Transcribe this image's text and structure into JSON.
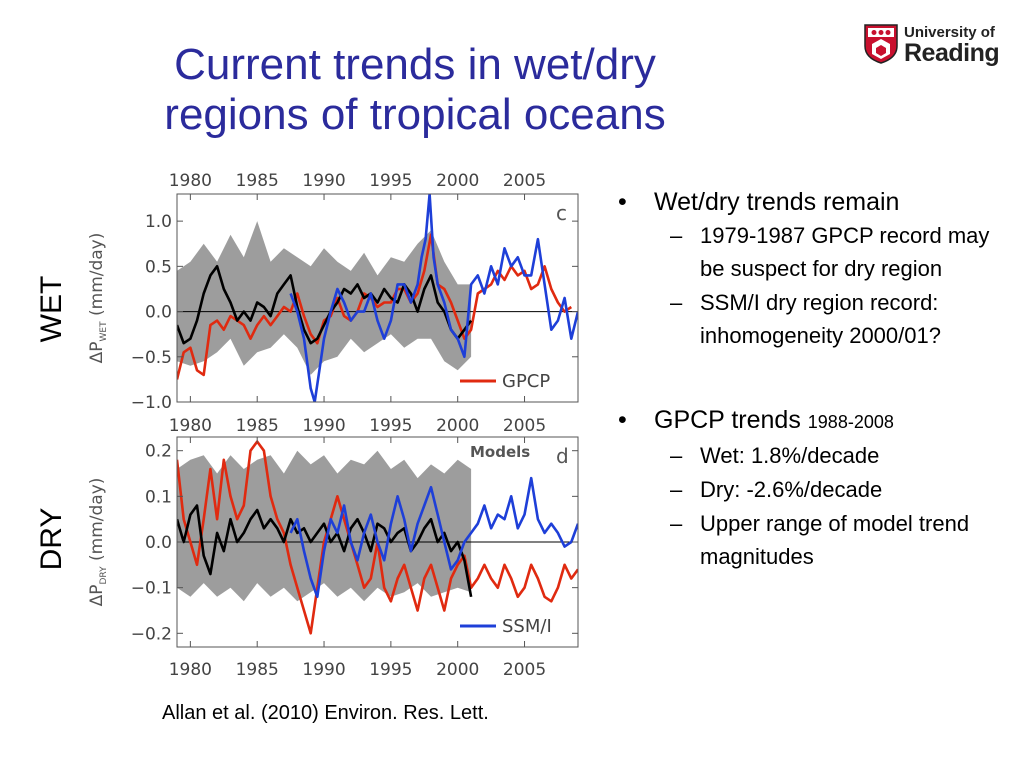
{
  "slide": {
    "title_lines": [
      "Current trends in wet/dry",
      "regions of tropical oceans"
    ],
    "logo": {
      "line1": "University of",
      "line2": "Reading",
      "color": "#c8102e"
    },
    "side_labels": {
      "wet": "WET",
      "dry": "DRY"
    },
    "bullets": [
      {
        "text": "Wet/dry trends remain",
        "sub": [
          "1979-1987 GPCP record may be suspect for dry region",
          "SSM/I dry region record: inhomogeneity 2000/01?"
        ]
      },
      {
        "text": "GPCP trends",
        "text_small": "1988-2008",
        "sub": [
          "Wet: 1.8%/decade",
          "Dry: -2.6%/decade",
          "Upper range of model trend magnitudes"
        ]
      }
    ],
    "bullet_glyph": "•",
    "dash_glyph": "–",
    "citation": "Allan et al. (2010) Environ. Res. Lett."
  },
  "chart_data": [
    {
      "type": "line",
      "panel_letter": "c",
      "ylabel": "ΔP",
      "ylabel_sub": "WET",
      "ylabel_unit": " (mm/day)",
      "xlim": [
        1979,
        2009
      ],
      "ylim": [
        -1.0,
        1.3
      ],
      "yticks": [
        -1.0,
        -0.5,
        0.0,
        0.5,
        1.0
      ],
      "ytick_labels": [
        "−1.0",
        "−0.5",
        "0.0",
        "0.5",
        "1.0"
      ],
      "xticks": [
        1980,
        1985,
        1990,
        1995,
        2000,
        2005
      ],
      "xtick_labels": [
        "1980",
        "1985",
        "1990",
        "1995",
        "2000",
        "2005"
      ],
      "zero_line": true,
      "legend": {
        "label": "GPCP",
        "color": "#e02a10",
        "placement": "bottom-right"
      },
      "series": [
        {
          "role": "band",
          "color": "#8c8c8c",
          "x": [
            1979.0,
            1980.0,
            1981.0,
            1982.0,
            1983.0,
            1984.0,
            1985.0,
            1986.0,
            1987.0,
            1988.0,
            1989.0,
            1990.0,
            1991.0,
            1992.0,
            1993.0,
            1994.0,
            1995.0,
            1996.0,
            1997.0,
            1998.0,
            1999.0,
            2000.0,
            2001.0
          ],
          "lower": [
            -0.55,
            -0.6,
            -0.55,
            -0.45,
            -0.3,
            -0.6,
            -0.45,
            -0.4,
            -0.25,
            -0.4,
            -0.7,
            -0.55,
            -0.5,
            -0.3,
            -0.45,
            -0.35,
            -0.25,
            -0.4,
            -0.3,
            -0.3,
            -0.55,
            -0.65,
            -0.5
          ],
          "upper": [
            0.45,
            0.55,
            0.75,
            0.55,
            0.85,
            0.6,
            1.0,
            0.55,
            0.7,
            0.6,
            0.5,
            0.7,
            0.55,
            0.45,
            0.65,
            0.4,
            0.6,
            0.55,
            0.75,
            0.9,
            0.55,
            0.3,
            0.3
          ]
        },
        {
          "name": "GPCP",
          "color": "#e02a10",
          "x": [
            1979.0,
            1979.5,
            1980.0,
            1980.5,
            1981.0,
            1981.5,
            1982.0,
            1982.5,
            1983.0,
            1983.5,
            1984.0,
            1984.5,
            1985.0,
            1985.5,
            1986.0,
            1986.5,
            1987.0,
            1987.5,
            1988.0,
            1988.5,
            1989.0,
            1989.5,
            1990.0,
            1990.5,
            1991.0,
            1991.5,
            1992.0,
            1992.5,
            1993.0,
            1993.5,
            1994.0,
            1994.5,
            1995.0,
            1995.5,
            1996.0,
            1996.5,
            1997.0,
            1997.5,
            1998.0,
            1998.5,
            1999.0,
            1999.5,
            2000.0,
            2000.5,
            2001.0,
            2001.5,
            2002.0,
            2002.5,
            2003.0,
            2003.5,
            2004.0,
            2004.5,
            2005.0,
            2005.5,
            2006.0,
            2006.5,
            2007.0,
            2007.5,
            2008.0,
            2008.5
          ],
          "y": [
            -0.75,
            -0.45,
            -0.4,
            -0.65,
            -0.7,
            -0.15,
            -0.1,
            -0.2,
            -0.05,
            -0.1,
            -0.15,
            -0.3,
            -0.15,
            -0.05,
            -0.15,
            -0.05,
            0.05,
            0.0,
            0.2,
            -0.05,
            -0.25,
            -0.35,
            -0.1,
            -0.05,
            0.15,
            -0.05,
            -0.1,
            0.0,
            0.2,
            0.15,
            0.05,
            0.1,
            0.1,
            0.25,
            0.25,
            0.1,
            0.2,
            0.45,
            0.85,
            0.3,
            0.25,
            0.1,
            -0.1,
            -0.3,
            -0.2,
            0.2,
            0.25,
            0.3,
            0.45,
            0.35,
            0.5,
            0.4,
            0.45,
            0.25,
            0.3,
            0.5,
            0.25,
            0.1,
            0.0,
            0.05
          ]
        },
        {
          "name": "Models",
          "color": "#000000",
          "x": [
            1979.0,
            1979.5,
            1980.0,
            1980.5,
            1981.0,
            1981.5,
            1982.0,
            1982.5,
            1983.0,
            1983.5,
            1984.0,
            1984.5,
            1985.0,
            1985.5,
            1986.0,
            1986.5,
            1987.0,
            1987.5,
            1988.0,
            1988.5,
            1989.0,
            1989.5,
            1990.0,
            1990.5,
            1991.0,
            1991.5,
            1992.0,
            1992.5,
            1993.0,
            1993.5,
            1994.0,
            1994.5,
            1995.0,
            1995.5,
            1996.0,
            1996.5,
            1997.0,
            1997.5,
            1998.0,
            1998.5,
            1999.0,
            1999.5,
            2000.0,
            2000.5,
            2001.0
          ],
          "y": [
            -0.15,
            -0.35,
            -0.3,
            -0.1,
            0.2,
            0.4,
            0.5,
            0.25,
            0.1,
            -0.1,
            0.0,
            -0.1,
            0.1,
            0.05,
            -0.05,
            0.2,
            0.3,
            0.4,
            0.05,
            -0.2,
            -0.35,
            -0.3,
            -0.15,
            0.0,
            0.1,
            0.25,
            0.2,
            0.3,
            0.15,
            0.2,
            0.1,
            0.25,
            0.15,
            0.1,
            0.3,
            0.2,
            0.0,
            0.25,
            0.4,
            0.1,
            0.0,
            -0.2,
            -0.3,
            -0.2,
            -0.1
          ]
        },
        {
          "name": "SSM/I",
          "color": "#1e3fd8",
          "x": [
            1987.5,
            1988.0,
            1988.5,
            1989.0,
            1989.3,
            1989.6,
            1990.0,
            1990.5,
            1991.0,
            1991.5,
            1992.0,
            1992.5,
            1993.0,
            1993.5,
            1994.0,
            1994.5,
            1995.0,
            1995.5,
            1996.0,
            1996.5,
            1997.0,
            1997.3,
            1997.6,
            1997.9,
            1998.2,
            1998.5,
            1999.0,
            1999.5,
            2000.0,
            2000.5,
            2001.0,
            2001.5,
            2002.0,
            2002.5,
            2003.0,
            2003.5,
            2004.0,
            2004.5,
            2005.0,
            2005.5,
            2006.0,
            2006.5,
            2007.0,
            2007.5,
            2008.0,
            2008.5,
            2009.0
          ],
          "y": [
            0.2,
            0.0,
            -0.3,
            -0.85,
            -1.0,
            -0.7,
            -0.3,
            0.0,
            0.25,
            0.1,
            -0.1,
            0.0,
            0.0,
            0.2,
            -0.1,
            -0.3,
            -0.1,
            0.3,
            0.3,
            0.1,
            0.3,
            0.6,
            0.8,
            1.3,
            0.6,
            0.3,
            0.1,
            -0.2,
            -0.3,
            -0.5,
            0.3,
            0.4,
            0.2,
            0.5,
            0.3,
            0.7,
            0.5,
            0.6,
            0.4,
            0.4,
            0.8,
            0.3,
            -0.2,
            -0.1,
            0.15,
            -0.3,
            0.0
          ]
        }
      ]
    },
    {
      "type": "line",
      "panel_letter": "d",
      "ylabel": "ΔP",
      "ylabel_sub": "DRY",
      "ylabel_unit": " (mm/day)",
      "xlim": [
        1979,
        2009
      ],
      "ylim": [
        -0.23,
        0.23
      ],
      "yticks": [
        -0.2,
        -0.1,
        0.0,
        0.1,
        0.2
      ],
      "ytick_labels": [
        "−0.2",
        "−0.1",
        "0.0",
        "0.1",
        "0.2"
      ],
      "xticks": [
        1980,
        1985,
        1990,
        1995,
        2000,
        2005
      ],
      "xtick_labels": [
        "1980",
        "1985",
        "1990",
        "1995",
        "2000",
        "2005"
      ],
      "zero_line": true,
      "annotation": "Models",
      "legend": {
        "label": "SSM/I",
        "color": "#1e3fd8",
        "placement": "bottom-right"
      },
      "series": [
        {
          "role": "band",
          "color": "#8c8c8c",
          "x": [
            1979.0,
            1980.0,
            1981.0,
            1982.0,
            1983.0,
            1984.0,
            1985.0,
            1986.0,
            1987.0,
            1988.0,
            1989.0,
            1990.0,
            1991.0,
            1992.0,
            1993.0,
            1994.0,
            1995.0,
            1996.0,
            1997.0,
            1998.0,
            1999.0,
            2000.0,
            2001.0
          ],
          "lower": [
            -0.1,
            -0.12,
            -0.09,
            -0.12,
            -0.1,
            -0.13,
            -0.09,
            -0.12,
            -0.1,
            -0.13,
            -0.11,
            -0.09,
            -0.12,
            -0.1,
            -0.13,
            -0.1,
            -0.12,
            -0.11,
            -0.09,
            -0.12,
            -0.11,
            -0.1,
            -0.11
          ],
          "upper": [
            0.16,
            0.18,
            0.19,
            0.15,
            0.19,
            0.16,
            0.18,
            0.19,
            0.15,
            0.2,
            0.17,
            0.19,
            0.15,
            0.18,
            0.17,
            0.2,
            0.16,
            0.18,
            0.14,
            0.17,
            0.15,
            0.18,
            0.16
          ]
        },
        {
          "name": "GPCP",
          "color": "#e02a10",
          "x": [
            1979.0,
            1979.5,
            1980.0,
            1980.5,
            1981.0,
            1981.5,
            1982.0,
            1982.5,
            1983.0,
            1983.5,
            1984.0,
            1984.5,
            1985.0,
            1985.5,
            1986.0,
            1986.5,
            1987.0,
            1987.5,
            1988.0,
            1988.5,
            1989.0,
            1989.5,
            1990.0,
            1990.5,
            1991.0,
            1991.5,
            1992.0,
            1992.5,
            1993.0,
            1993.5,
            1994.0,
            1994.5,
            1995.0,
            1995.5,
            1996.0,
            1996.5,
            1997.0,
            1997.5,
            1998.0,
            1998.5,
            1999.0,
            1999.5,
            2000.0,
            2000.5,
            2001.0,
            2001.5,
            2002.0,
            2002.5,
            2003.0,
            2003.5,
            2004.0,
            2004.5,
            2005.0,
            2005.5,
            2006.0,
            2006.5,
            2007.0,
            2007.5,
            2008.0,
            2008.5,
            2009.0
          ],
          "y": [
            0.18,
            0.05,
            0.0,
            -0.05,
            0.05,
            0.16,
            0.05,
            0.18,
            0.1,
            0.05,
            0.08,
            0.2,
            0.22,
            0.2,
            0.1,
            0.05,
            0.02,
            -0.05,
            -0.1,
            -0.15,
            -0.2,
            -0.1,
            0.0,
            0.05,
            0.1,
            0.05,
            0.0,
            -0.05,
            -0.1,
            -0.08,
            0.0,
            -0.1,
            -0.13,
            -0.08,
            -0.05,
            -0.1,
            -0.15,
            -0.08,
            -0.05,
            -0.1,
            -0.15,
            -0.08,
            -0.05,
            -0.03,
            -0.1,
            -0.08,
            -0.05,
            -0.08,
            -0.1,
            -0.05,
            -0.08,
            -0.12,
            -0.1,
            -0.05,
            -0.08,
            -0.12,
            -0.13,
            -0.1,
            -0.05,
            -0.08,
            -0.06
          ]
        },
        {
          "name": "Models",
          "color": "#000000",
          "x": [
            1979.0,
            1979.5,
            1980.0,
            1980.5,
            1981.0,
            1981.5,
            1982.0,
            1982.5,
            1983.0,
            1983.5,
            1984.0,
            1984.5,
            1985.0,
            1985.5,
            1986.0,
            1986.5,
            1987.0,
            1987.5,
            1988.0,
            1988.5,
            1989.0,
            1989.5,
            1990.0,
            1990.5,
            1991.0,
            1991.5,
            1992.0,
            1992.5,
            1993.0,
            1993.5,
            1994.0,
            1994.5,
            1995.0,
            1995.5,
            1996.0,
            1996.5,
            1997.0,
            1997.5,
            1998.0,
            1998.5,
            1999.0,
            1999.5,
            2000.0,
            2000.5,
            2001.0
          ],
          "y": [
            0.05,
            0.0,
            0.06,
            0.08,
            -0.03,
            -0.07,
            0.02,
            -0.02,
            0.05,
            0.0,
            0.02,
            0.05,
            0.07,
            0.03,
            0.05,
            0.03,
            0.0,
            0.05,
            0.02,
            0.03,
            0.0,
            0.02,
            0.04,
            0.0,
            0.02,
            -0.02,
            0.03,
            0.05,
            0.02,
            -0.02,
            0.04,
            0.03,
            0.0,
            0.02,
            0.03,
            -0.02,
            0.0,
            0.03,
            0.05,
            0.0,
            0.02,
            -0.02,
            0.0,
            -0.04,
            -0.12
          ]
        },
        {
          "name": "SSM/I",
          "color": "#1e3fd8",
          "x": [
            1987.5,
            1988.0,
            1988.5,
            1989.0,
            1989.5,
            1990.0,
            1990.5,
            1991.0,
            1991.5,
            1992.0,
            1992.5,
            1993.0,
            1993.5,
            1994.0,
            1994.5,
            1995.0,
            1995.5,
            1996.0,
            1996.5,
            1997.0,
            1997.5,
            1998.0,
            1998.5,
            1999.0,
            1999.5,
            2000.0,
            2000.5,
            2001.0,
            2001.5,
            2002.0,
            2002.5,
            2003.0,
            2003.5,
            2004.0,
            2004.5,
            2005.0,
            2005.5,
            2006.0,
            2006.5,
            2007.0,
            2007.5,
            2008.0,
            2008.5,
            2009.0
          ],
          "y": [
            0.02,
            0.05,
            -0.02,
            -0.08,
            -0.12,
            -0.02,
            0.05,
            0.02,
            0.08,
            0.0,
            -0.04,
            0.02,
            0.06,
            0.0,
            -0.04,
            0.04,
            0.1,
            0.05,
            -0.02,
            0.04,
            0.08,
            0.12,
            0.06,
            0.0,
            -0.06,
            -0.04,
            0.0,
            0.02,
            0.04,
            0.08,
            0.03,
            0.06,
            0.05,
            0.1,
            0.03,
            0.06,
            0.14,
            0.05,
            0.02,
            0.04,
            0.02,
            -0.01,
            0.0,
            0.04
          ]
        }
      ]
    }
  ]
}
